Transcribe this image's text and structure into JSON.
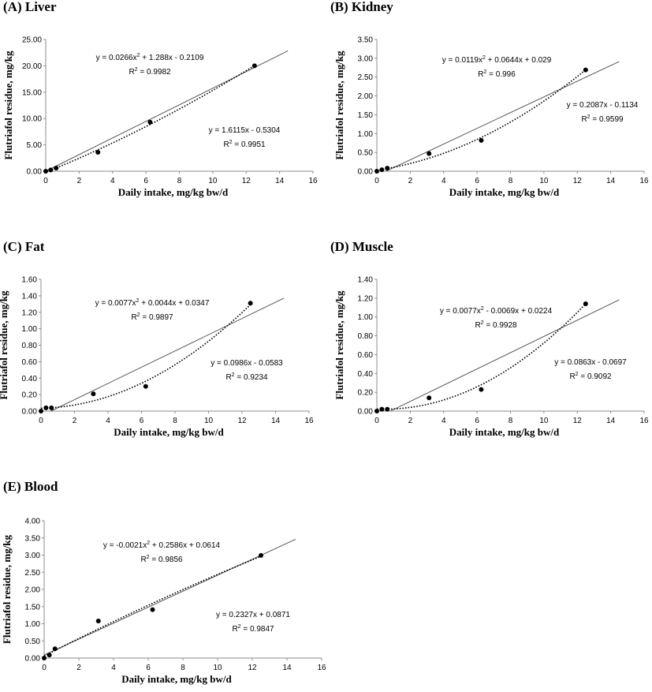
{
  "chart_data": [
    {
      "type": "scatter",
      "panel_label": "(A) Liver",
      "xlabel": "Daily intake, mg/kg bw/d",
      "ylabel": "Flutriafol residue, mg/kg",
      "xlim": [
        0,
        16
      ],
      "ylim": [
        0,
        25
      ],
      "xticks": [
        "0",
        "2",
        "4",
        "6",
        "8",
        "10",
        "12",
        "14",
        "16"
      ],
      "yticks": [
        "0.00",
        "5.00",
        "10.00",
        "15.00",
        "20.00",
        "25.00"
      ],
      "points": {
        "x": [
          0,
          0.3,
          0.625,
          3.125,
          6.25,
          12.5
        ],
        "y": [
          0,
          0.25,
          0.6,
          3.6,
          9.3,
          20.0
        ]
      },
      "linear_fit": {
        "slope": 1.6115,
        "intercept": -0.5304,
        "x_range": [
          0,
          14.5
        ],
        "equation": "y = 1.6115x - 0.5304",
        "r2": "R² = 0.9951"
      },
      "poly_fit": {
        "a": 0.0266,
        "b": 1.288,
        "c": -0.2109,
        "x_range": [
          0,
          12.5
        ],
        "equation": "y = 0.0266x² + 1.288x - 0.2109",
        "r2": "R² = 0.9982"
      },
      "grid": false
    },
    {
      "type": "scatter",
      "panel_label": "(B) Kidney",
      "xlabel": "Daily intake, mg/kg bw/d",
      "ylabel": "Flutriafol residue, mg/kg",
      "xlim": [
        0,
        16
      ],
      "ylim": [
        0,
        3.5
      ],
      "xticks": [
        "0",
        "2",
        "4",
        "6",
        "8",
        "10",
        "12",
        "14",
        "16"
      ],
      "yticks": [
        "0.00",
        "0.50",
        "1.00",
        "1.50",
        "2.00",
        "2.50",
        "3.00",
        "3.50"
      ],
      "points": {
        "x": [
          0,
          0.3,
          0.625,
          3.125,
          6.25,
          12.5
        ],
        "y": [
          0,
          0.04,
          0.08,
          0.47,
          0.82,
          2.69
        ]
      },
      "linear_fit": {
        "slope": 0.2087,
        "intercept": -0.1134,
        "x_range": [
          0.54,
          14.5
        ],
        "equation": "y = 0.2087x - 0.1134",
        "r2": "R² = 0.9599"
      },
      "poly_fit": {
        "a": 0.0119,
        "b": 0.0644,
        "c": 0.029,
        "x_range": [
          0,
          12.5
        ],
        "equation": "y = 0.0119x² + 0.0644x + 0.029",
        "r2": "R² = 0.996"
      },
      "grid": false
    },
    {
      "type": "scatter",
      "panel_label": "(C) Fat",
      "xlabel": "Daily intake, mg/kg bw/d",
      "ylabel": "Flutriafol residue, mg/kg",
      "xlim": [
        0,
        16
      ],
      "ylim": [
        0,
        1.6
      ],
      "xticks": [
        "0",
        "2",
        "4",
        "6",
        "8",
        "10",
        "12",
        "14",
        "16"
      ],
      "yticks": [
        "0.00",
        "0.20",
        "0.40",
        "0.60",
        "0.80",
        "1.00",
        "1.20",
        "1.40",
        "1.60"
      ],
      "points": {
        "x": [
          0,
          0.3,
          0.625,
          3.125,
          6.25,
          12.5
        ],
        "y": [
          0,
          0.04,
          0.04,
          0.21,
          0.3,
          1.31
        ]
      },
      "linear_fit": {
        "slope": 0.0986,
        "intercept": -0.0583,
        "x_range": [
          0.59,
          14.5
        ],
        "equation": "y = 0.0986x - 0.0583",
        "r2": "R² = 0.9234"
      },
      "poly_fit": {
        "a": 0.0077,
        "b": 0.0044,
        "c": 0.0347,
        "x_range": [
          0,
          12.5
        ],
        "equation": "y = 0.0077x² + 0.0044x + 0.0347",
        "r2": "R² = 0.9897"
      },
      "grid": false
    },
    {
      "type": "scatter",
      "panel_label": "(D) Muscle",
      "xlabel": "Daily intake, mg/kg bw/d",
      "ylabel": "Flutriafol residue, mg/kg",
      "xlim": [
        0,
        16
      ],
      "ylim": [
        0,
        1.4
      ],
      "xticks": [
        "0",
        "2",
        "4",
        "6",
        "8",
        "10",
        "12",
        "14",
        "16"
      ],
      "yticks": [
        "0.00",
        "0.20",
        "0.40",
        "0.60",
        "0.80",
        "1.00",
        "1.20",
        "1.40"
      ],
      "points": {
        "x": [
          0,
          0.3,
          0.625,
          3.125,
          6.25,
          12.5
        ],
        "y": [
          0,
          0.02,
          0.02,
          0.14,
          0.23,
          1.14
        ]
      },
      "linear_fit": {
        "slope": 0.0863,
        "intercept": -0.0697,
        "x_range": [
          0.81,
          14.5
        ],
        "equation": "y = 0.0863x - 0.0697",
        "r2": "R² = 0.9092"
      },
      "poly_fit": {
        "a": 0.0077,
        "b": -0.0069,
        "c": 0.0224,
        "x_range": [
          0,
          12.5
        ],
        "equation": "y = 0.0077x² - 0.0069x + 0.0224",
        "r2": "R² = 0.9928"
      },
      "grid": false
    },
    {
      "type": "scatter",
      "panel_label": "(E) Blood",
      "xlabel": "Daily intake, mg/kg bw/d",
      "ylabel": "Flutriafol residue, mg/kg",
      "xlim": [
        0,
        16
      ],
      "ylim": [
        0,
        4
      ],
      "xticks": [
        "0",
        "2",
        "4",
        "6",
        "8",
        "10",
        "12",
        "14",
        "16"
      ],
      "yticks": [
        "0.00",
        "0.50",
        "1.00",
        "1.50",
        "2.00",
        "2.50",
        "3.00",
        "3.50",
        "4.00"
      ],
      "points": {
        "x": [
          0,
          0.3,
          0.625,
          3.125,
          6.25,
          12.5
        ],
        "y": [
          0,
          0.09,
          0.27,
          1.08,
          1.41,
          2.99
        ]
      },
      "linear_fit": {
        "slope": 0.2327,
        "intercept": 0.0871,
        "x_range": [
          0,
          14.5
        ],
        "equation": "y = 0.2327x + 0.0871",
        "r2": "R² = 0.9847"
      },
      "poly_fit": {
        "a": -0.0021,
        "b": 0.2586,
        "c": 0.0614,
        "x_range": [
          0,
          12.5
        ],
        "equation": "y = -0.0021x² + 0.2586x + 0.0614",
        "r2": "R² = 0.9856"
      },
      "grid": false
    }
  ]
}
